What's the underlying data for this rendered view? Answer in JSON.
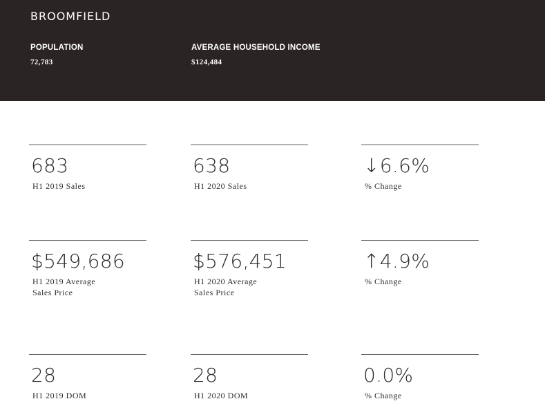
{
  "header": {
    "city": "BROOMFIELD",
    "population_label": "POPULATION",
    "population_value": "72,783",
    "income_label": "AVERAGE HOUSEHOLD INCOME",
    "income_value": "$124,484"
  },
  "metrics": {
    "sales_2019": {
      "value": "683",
      "caption": "H1 2019 Sales"
    },
    "sales_2020": {
      "value": "638",
      "caption": "H1 2020 Sales"
    },
    "sales_change": {
      "value": "↓6.6%",
      "caption": "% Change"
    },
    "price_2019": {
      "value": "$549,686",
      "caption": "H1 2019 Average\nSales Price"
    },
    "price_2020": {
      "value": "$576,451",
      "caption": "H1 2020 Average\nSales Price"
    },
    "price_change": {
      "value": "↑4.9%",
      "caption": "% Change"
    },
    "dom_2019": {
      "value": "28",
      "caption": "H1 2019 DOM"
    },
    "dom_2020": {
      "value": "28",
      "caption": "H1 2020 DOM"
    },
    "dom_change": {
      "value": "0.0%",
      "caption": "% Change"
    }
  }
}
